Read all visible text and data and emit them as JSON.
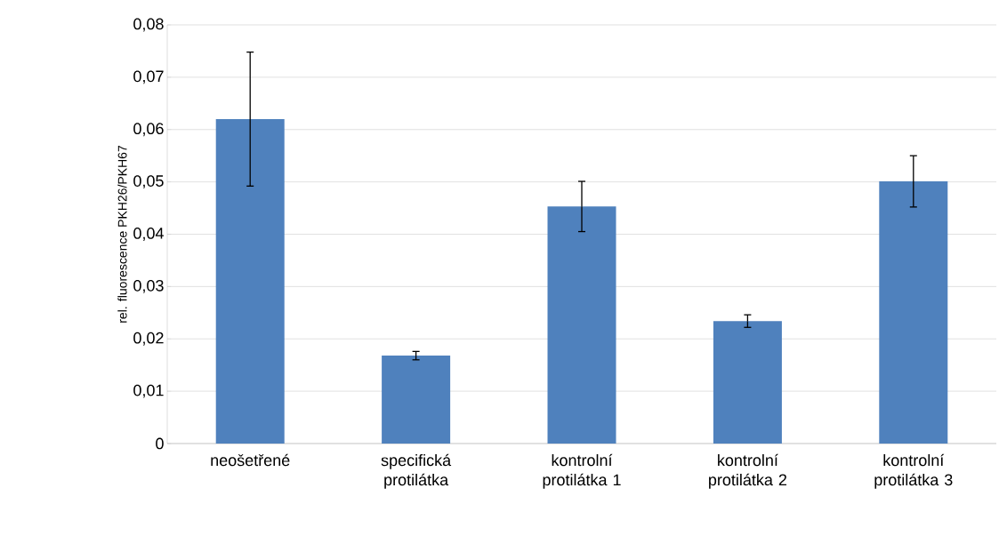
{
  "chart_data": {
    "type": "bar",
    "ylabel": "rel. fluorescence PKH26/PKH67",
    "categories": [
      "neošetřené",
      "specifická protilátka",
      "kontrolní protilátka 1",
      "kontrolní protilátka 2",
      "kontrolní protilátka 3"
    ],
    "values": [
      0.062,
      0.0168,
      0.0453,
      0.0234,
      0.0501
    ],
    "errors": [
      0.0128,
      0.0008,
      0.0048,
      0.0012,
      0.0049
    ],
    "color": "#4f81bd",
    "ylim": [
      0,
      0.08
    ],
    "yticks": [
      0,
      {
        "value": 0.01,
        "label": "0,01"
      },
      {
        "value": 0.02,
        "label": "0,02"
      },
      {
        "value": 0.03,
        "label": "0,03"
      },
      {
        "value": 0.04,
        "label": "0,04"
      },
      {
        "value": 0.05,
        "label": "0,05"
      },
      {
        "value": 0.06,
        "label": "0,06"
      },
      {
        "value": 0.07,
        "label": "0,07"
      },
      {
        "value": 0.08,
        "label": "0,08"
      }
    ],
    "grid": "y"
  }
}
